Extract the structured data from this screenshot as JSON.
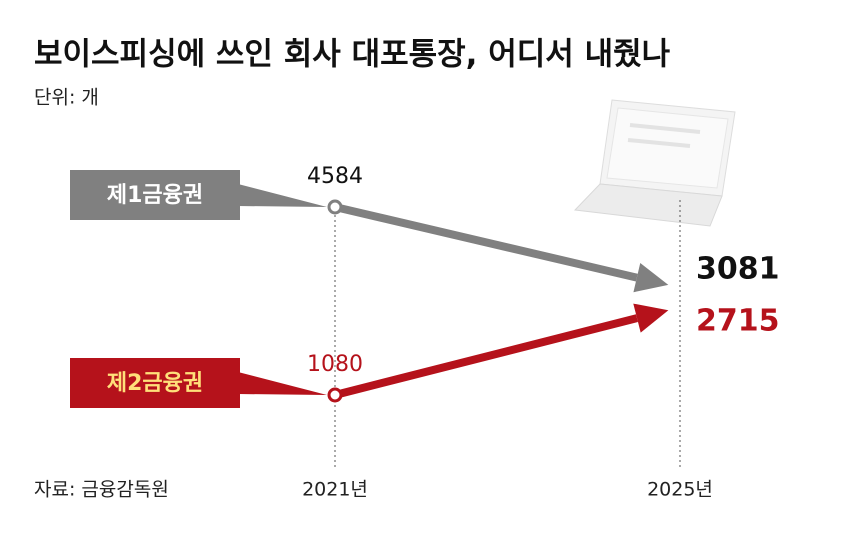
{
  "chart_data": {
    "type": "line",
    "title": "보이스피싱에 쓰인 회사 대포통장, 어디서 내줬나",
    "subtitle": "단위: 개",
    "source": "자료: 금융감독원",
    "categories": [
      "2021년",
      "2025년"
    ],
    "series": [
      {
        "name": "제1금융권",
        "color": "#808080",
        "values": [
          4584,
          3081
        ]
      },
      {
        "name": "제2금융권",
        "color": "#b5121b",
        "values": [
          1080,
          2715
        ]
      }
    ]
  }
}
